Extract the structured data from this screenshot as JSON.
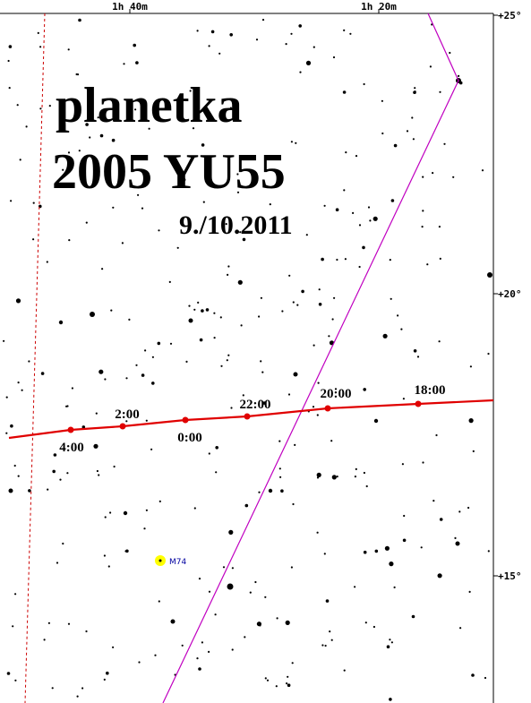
{
  "header": {
    "line1": "planetka",
    "line2": "2005 YU55",
    "date": "9./10.2011"
  },
  "ra_labels": [
    "1h 40m",
    "1h 20m"
  ],
  "dec_labels": [
    "+25°",
    "+20°",
    "+15°"
  ],
  "path_labels": [
    "4:00",
    "2:00",
    "0:00",
    "22:00",
    "20:00",
    "18:00"
  ],
  "object_label": "M74"
}
